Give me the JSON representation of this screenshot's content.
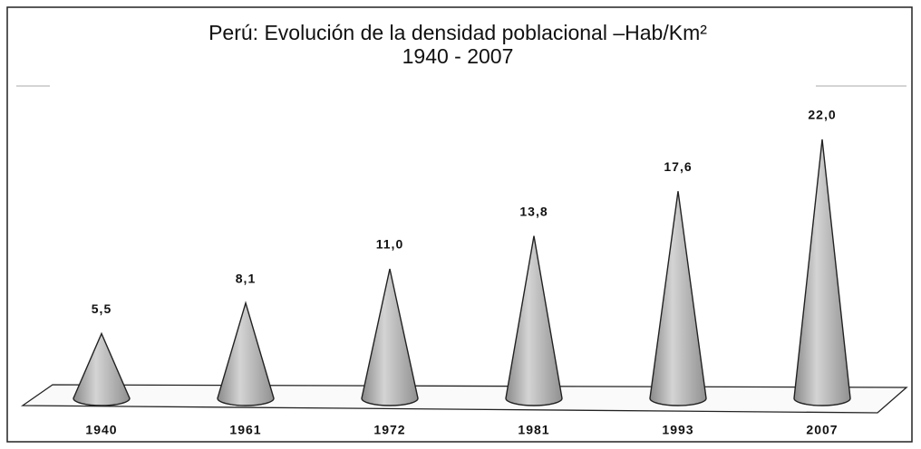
{
  "chart_data": {
    "type": "cone",
    "title": "Perú: Evolución de la densidad  poblacional –Hab/Km²",
    "subtitle": "1940 - 2007",
    "categories": [
      "1940",
      "1961",
      "1972",
      "1981",
      "1993",
      "2007"
    ],
    "values": [
      5.5,
      8.1,
      11.0,
      13.8,
      17.6,
      22.0
    ],
    "value_labels": [
      "5,5",
      "8,1",
      "11,0",
      "13,8",
      "17,6",
      "22,0"
    ],
    "color": "#b8b8b8"
  }
}
